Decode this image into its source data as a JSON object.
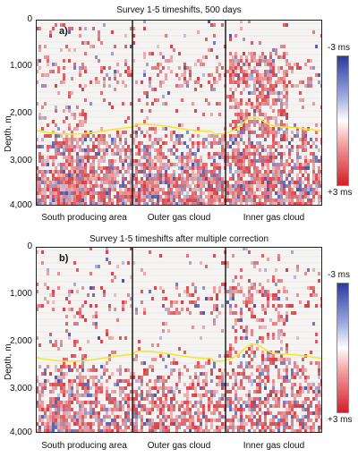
{
  "panels": [
    {
      "title": "Survey 1-5 timeshifts, 500 days",
      "panel_label": "a)",
      "ylabel": "Depth, m",
      "yticks": [
        "0",
        "1,000",
        "2,000",
        "3,000",
        "4,000"
      ],
      "xlabels": [
        "South producing area",
        "Outer gas cloud",
        "Inner gas cloud"
      ],
      "colorbar": {
        "top": "-3 ms",
        "bottom": "+3 ms"
      }
    },
    {
      "title": "Survey 1-5 timeshifts after multiple correction",
      "panel_label": "b)",
      "ylabel": "Depth, m",
      "yticks": [
        "0",
        "1,000",
        "2,000",
        "3,000",
        "4,000"
      ],
      "xlabels": [
        "South producing area",
        "Outer gas cloud",
        "Inner gas cloud"
      ],
      "colorbar": {
        "top": "-3 ms",
        "bottom": "+3 ms"
      }
    }
  ],
  "colors": {
    "negative": "#2b3aa0",
    "positive": "#d41e24",
    "horizon": "#f2e830"
  }
}
